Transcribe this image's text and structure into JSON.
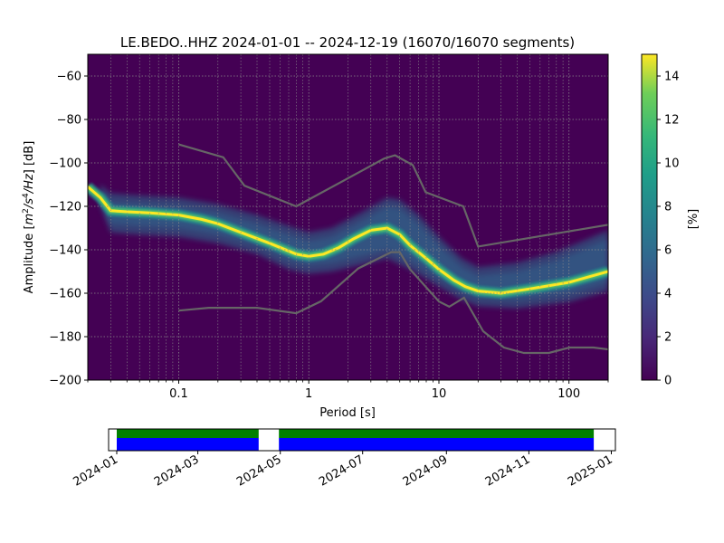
{
  "chart_data": [
    {
      "type": "heatmap",
      "title": "LE.BEDO..HHZ   2024-01-01 -- 2024-12-19  (16070/16070 segments)",
      "xlabel": "Period [s]",
      "ylabel": "Amplitude [m²/s⁴/Hz] [dB]",
      "ylabel_parts": {
        "pre": "Amplitude [",
        "m": "m",
        "two": "2",
        "per_s": "/s",
        "four": "4",
        "hz": "/Hz",
        "post": "] [dB]"
      },
      "x_scale": "log",
      "xlim": [
        0.02,
        200
      ],
      "ylim": [
        -200,
        -50
      ],
      "x_ticks": [
        {
          "value": 0.1,
          "label": "0.1"
        },
        {
          "value": 1,
          "label": "1"
        },
        {
          "value": 10,
          "label": "10"
        },
        {
          "value": 100,
          "label": "100"
        }
      ],
      "y_ticks": [
        {
          "value": -60,
          "label": "−60"
        },
        {
          "value": -80,
          "label": "−80"
        },
        {
          "value": -100,
          "label": "−100"
        },
        {
          "value": -120,
          "label": "−120"
        },
        {
          "value": -140,
          "label": "−140"
        },
        {
          "value": -160,
          "label": "−160"
        },
        {
          "value": -180,
          "label": "−180"
        },
        {
          "value": -200,
          "label": "−200"
        }
      ],
      "grid": true,
      "colorbar": {
        "label": "[%]",
        "range": [
          0,
          15
        ],
        "ticks": [
          0,
          2,
          4,
          6,
          8,
          10,
          12,
          14
        ],
        "colormap": "viridis"
      },
      "mode_curve": [
        [
          0.02,
          -111
        ],
        [
          0.025,
          -116
        ],
        [
          0.03,
          -122
        ],
        [
          0.04,
          -122.5
        ],
        [
          0.06,
          -123
        ],
        [
          0.1,
          -124
        ],
        [
          0.15,
          -126
        ],
        [
          0.2,
          -128
        ],
        [
          0.3,
          -132
        ],
        [
          0.5,
          -137
        ],
        [
          0.8,
          -142
        ],
        [
          1.0,
          -143
        ],
        [
          1.3,
          -142
        ],
        [
          1.7,
          -139
        ],
        [
          2.2,
          -135
        ],
        [
          3.0,
          -131
        ],
        [
          4.0,
          -130
        ],
        [
          5.0,
          -133
        ],
        [
          6.0,
          -138
        ],
        [
          8.0,
          -144
        ],
        [
          10,
          -149
        ],
        [
          13,
          -154
        ],
        [
          16,
          -157
        ],
        [
          20,
          -159
        ],
        [
          30,
          -160
        ],
        [
          50,
          -158
        ],
        [
          100,
          -155
        ],
        [
          200,
          -150
        ]
      ],
      "upper_envelope": [
        [
          0.025,
          -114
        ],
        [
          0.03,
          -118
        ],
        [
          0.05,
          -119
        ],
        [
          0.1,
          -120
        ],
        [
          0.2,
          -123
        ],
        [
          0.4,
          -128
        ],
        [
          0.7,
          -133
        ],
        [
          1.0,
          -136
        ],
        [
          1.5,
          -134
        ],
        [
          2.5,
          -127
        ],
        [
          4.0,
          -120
        ],
        [
          5.0,
          -121
        ],
        [
          7.0,
          -128
        ],
        [
          10,
          -138
        ],
        [
          15,
          -148
        ],
        [
          20,
          -152
        ],
        [
          40,
          -150
        ],
        [
          80,
          -145
        ],
        [
          200,
          -135
        ]
      ],
      "lower_envelope": [
        [
          0.025,
          -116
        ],
        [
          0.03,
          -128
        ],
        [
          0.05,
          -129
        ],
        [
          0.1,
          -130
        ],
        [
          0.2,
          -133
        ],
        [
          0.4,
          -138
        ],
        [
          0.7,
          -145
        ],
        [
          1.0,
          -147
        ],
        [
          1.5,
          -146
        ],
        [
          2.5,
          -143
        ],
        [
          4.0,
          -140
        ],
        [
          6.0,
          -145
        ],
        [
          10,
          -153
        ],
        [
          15,
          -159
        ],
        [
          20,
          -162
        ],
        [
          40,
          -163
        ],
        [
          100,
          -160
        ],
        [
          200,
          -155
        ]
      ],
      "reference_models": [
        {
          "name": "high_noise_model",
          "points": [
            [
              0.1,
              -91.5
            ],
            [
              0.22,
              -97.4
            ],
            [
              0.32,
              -110.5
            ],
            [
              0.8,
              -120.0
            ],
            [
              3.8,
              -98.0
            ],
            [
              4.6,
              -96.5
            ],
            [
              6.3,
              -101.0
            ],
            [
              7.9,
              -113.5
            ],
            [
              15.4,
              -120.0
            ],
            [
              20.0,
              -138.5
            ],
            [
              354.8,
              -126.0
            ]
          ]
        },
        {
          "name": "low_noise_model",
          "points": [
            [
              0.1,
              -168
            ],
            [
              0.17,
              -166.7
            ],
            [
              0.4,
              -166.7
            ],
            [
              0.8,
              -169.2
            ],
            [
              1.24,
              -163.7
            ],
            [
              2.4,
              -148.6
            ],
            [
              4.3,
              -141.1
            ],
            [
              5.0,
              -141.1
            ],
            [
              6.0,
              -149.0
            ],
            [
              10.0,
              -163.8
            ],
            [
              12.0,
              -166.2
            ],
            [
              15.6,
              -162.1
            ],
            [
              21.9,
              -177.5
            ],
            [
              31.6,
              -185.0
            ],
            [
              45.0,
              -187.5
            ],
            [
              70.0,
              -187.5
            ],
            [
              101.0,
              -185.0
            ],
            [
              154.0,
              -185.0
            ],
            [
              328.0,
              -187.5
            ]
          ]
        }
      ]
    },
    {
      "type": "bar",
      "name": "data_availability",
      "x_ticks": [
        "2024-01",
        "2024-03",
        "2024-05",
        "2024-07",
        "2024-09",
        "2024-11",
        "2025-01"
      ],
      "xlim": [
        "2023-12-26",
        "2025-01-04"
      ],
      "intervals": [
        {
          "start": "2024-01-01",
          "end": "2024-04-15"
        },
        {
          "start": "2024-04-30",
          "end": "2024-12-19"
        }
      ],
      "colors": {
        "top": "#008000",
        "bottom": "#0000ff"
      }
    }
  ]
}
